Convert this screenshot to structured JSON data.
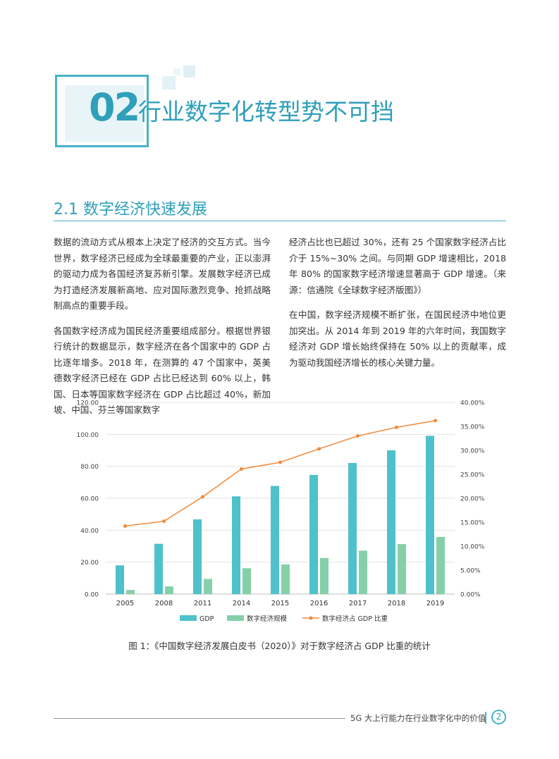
{
  "section": {
    "number": "02",
    "title": "行业数字化转型势不可挡"
  },
  "subsection": {
    "title": "2.1 数字经济快速发展"
  },
  "body": {
    "left": [
      "数据的流动方式从根本上决定了经济的交互方式。当今世界，数字经济已经成为全球最重要的产业，正以澎湃的驱动力成为各国经济复苏新引擎。发展数字经济已成为打造经济发展新高地、应对国际激烈竞争、抢抓战略制高点的重要手段。",
      "各国数字经济成为国民经济重要组成部分。根据世界银行统计的数据显示，数字经济在各个国家中的 GDP 占比逐年增多。2018 年，在测算的 47 个国家中，英美德数字经济已经在 GDP 占比已经达到 60% 以上，韩国、日本等国家数字经济在 GDP 占比超过 40%，新加坡、中国、芬兰等国家数字"
    ],
    "right": [
      "经济占比也已超过 30%，还有 25 个国家数字经济占比介于 15%~30% 之间。与同期 GDP 增速相比，2018 年 80% 的国家数字经济增速显著高于 GDP 增速。（来源：信通院《全球数字经济版图》）",
      "在中国，数字经济规模不断扩张，在国民经济中地位更加突出。从 2014 年到 2019 年的六年时间，我国数字经济对 GDP 增长始终保持在 50% 以上的贡献率，成为驱动我国经济增长的核心关键力量。"
    ]
  },
  "chart_data": {
    "type": "bar",
    "categories": [
      "2005",
      "2008",
      "2011",
      "2014",
      "2015",
      "2016",
      "2017",
      "2018",
      "2019"
    ],
    "series": [
      {
        "name": "GDP",
        "type": "bar",
        "axis": "left",
        "color": "#4fc1ca",
        "values": [
          18.0,
          31.5,
          46.8,
          61.2,
          67.7,
          74.6,
          82.1,
          90.0,
          99.1
        ]
      },
      {
        "name": "数字经济规模",
        "type": "bar",
        "axis": "left",
        "color": "#86d0a9",
        "values": [
          2.6,
          4.8,
          9.5,
          16.2,
          18.6,
          22.6,
          27.2,
          31.3,
          35.8
        ]
      },
      {
        "name": "数字经济占 GDP 比重",
        "type": "line",
        "axis": "right",
        "color": "#f08a3b",
        "values": [
          14.2,
          15.2,
          20.3,
          26.1,
          27.5,
          30.3,
          33.0,
          34.8,
          36.2
        ]
      }
    ],
    "yleft": {
      "min": 0,
      "max": 120,
      "step": 20,
      "ticks": [
        "0.00",
        "20.00",
        "40.00",
        "60.00",
        "80.00",
        "100.00",
        "120.00"
      ]
    },
    "yright": {
      "min": 0,
      "max": 40,
      "step": 5,
      "ticks": [
        "0.00%",
        "5.00%",
        "10.00%",
        "15.00%",
        "20.00%",
        "25.00%",
        "30.00%",
        "35.00%",
        "40.00%"
      ]
    },
    "grid": true,
    "legend": "bottom"
  },
  "caption": "图 1：《中国数字经济发展白皮书（2020）》对于数字经济占 GDP 比重的统计",
  "footer": {
    "text": "5G 大上行能力在行业数字化中的价值",
    "page": "2"
  }
}
